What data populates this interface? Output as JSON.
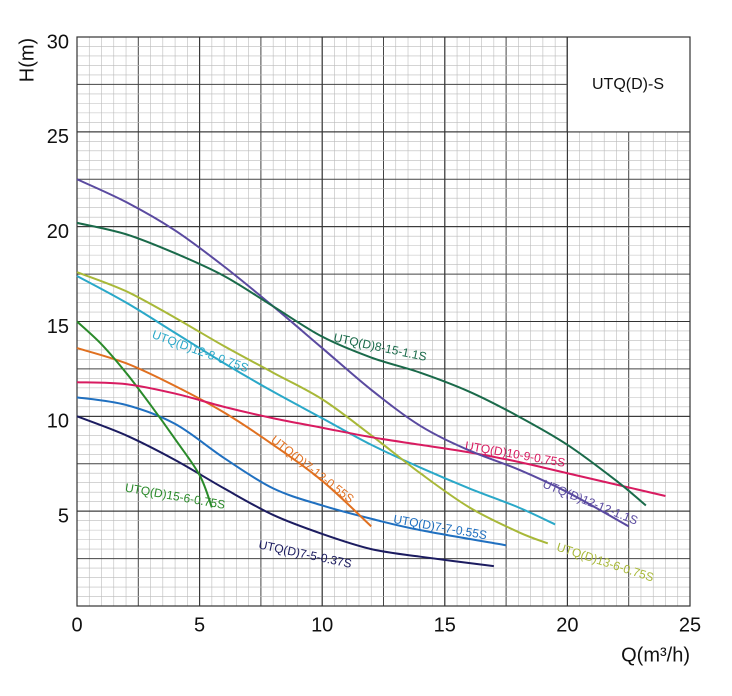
{
  "chart_data": {
    "type": "line",
    "annotation": "UTQ(D)-S",
    "xlabel": "Q(m³/h)",
    "ylabel": "H(m)",
    "xlim": [
      0,
      25
    ],
    "xticks": [
      0,
      5,
      10,
      15,
      20,
      25
    ],
    "ylim": [
      0,
      30
    ],
    "yticks": [
      5,
      10,
      15,
      20,
      25,
      30
    ],
    "grid": true,
    "series": [
      {
        "name": "UTQ(D)7-5-0.37S",
        "color": "#1c1c60",
        "x": [
          0,
          2,
          4,
          6,
          8,
          10,
          12,
          14,
          17
        ],
        "values": [
          10,
          9.0,
          7.7,
          6.2,
          4.8,
          3.8,
          3.0,
          2.6,
          2.1
        ]
      },
      {
        "name": "UTQ(D)7-7-0.55S",
        "color": "#2070c0",
        "x": [
          0,
          2,
          4,
          6,
          8,
          10,
          12,
          14,
          17.5
        ],
        "values": [
          11,
          10.6,
          9.6,
          7.8,
          6.2,
          5.3,
          4.6,
          4.0,
          3.2
        ]
      },
      {
        "name": "UTQ(D)7-12-0.55S",
        "color": "#e07020",
        "x": [
          0,
          2,
          4,
          6,
          8,
          10,
          12
        ],
        "values": [
          13.6,
          12.8,
          11.6,
          10.2,
          8.5,
          6.6,
          4.2
        ]
      },
      {
        "name": "UTQ(D)15-6-0.75S",
        "color": "#2a8a2a",
        "x": [
          0,
          1,
          2,
          3,
          4,
          5,
          5.5
        ],
        "values": [
          15,
          13.8,
          12.3,
          10.6,
          8.8,
          6.9,
          5.2
        ]
      },
      {
        "name": "UTQ(D)12-8-0.75S",
        "color": "#2aa8c8",
        "x": [
          0,
          2,
          4,
          6,
          8,
          10,
          12,
          14,
          16,
          18,
          19.5
        ],
        "values": [
          17.4,
          16.0,
          14.4,
          12.8,
          11.3,
          9.9,
          8.5,
          7.3,
          6.2,
          5.2,
          4.3
        ]
      },
      {
        "name": "UTQ(D)13-6-0.75S",
        "color": "#a8b838",
        "x": [
          0,
          2,
          4,
          6,
          8,
          10,
          12,
          14,
          16,
          18,
          19.2
        ],
        "values": [
          17.6,
          16.6,
          15.2,
          13.7,
          12.3,
          10.9,
          9.0,
          7.0,
          5.2,
          3.9,
          3.3
        ]
      },
      {
        "name": "UTQ(D)10-9-0.75S",
        "color": "#d81b60",
        "x": [
          0,
          2,
          4,
          6,
          8,
          10,
          12,
          14,
          16,
          18,
          20,
          22,
          24
        ],
        "values": [
          11.8,
          11.7,
          11.2,
          10.5,
          9.9,
          9.4,
          8.9,
          8.5,
          8.1,
          7.6,
          7.0,
          6.4,
          5.8
        ]
      },
      {
        "name": "UTQ(D)12-12-1.1S",
        "color": "#5a4aa0",
        "x": [
          0,
          2,
          4,
          6,
          8,
          10,
          12,
          14,
          16,
          18,
          20,
          22.5
        ],
        "values": [
          22.5,
          21.3,
          19.8,
          17.9,
          15.8,
          13.6,
          11.4,
          9.5,
          8.2,
          7.2,
          6.0,
          4.2
        ]
      },
      {
        "name": "UTQ(D)8-15-1.1S",
        "color": "#1a6a4a",
        "x": [
          0,
          2,
          4,
          6,
          8,
          10,
          12,
          14,
          16,
          18,
          20,
          22,
          23.2
        ],
        "values": [
          20.2,
          19.6,
          18.6,
          17.4,
          15.8,
          14.2,
          13.1,
          12.3,
          11.3,
          10.0,
          8.5,
          6.6,
          5.3
        ]
      }
    ]
  }
}
